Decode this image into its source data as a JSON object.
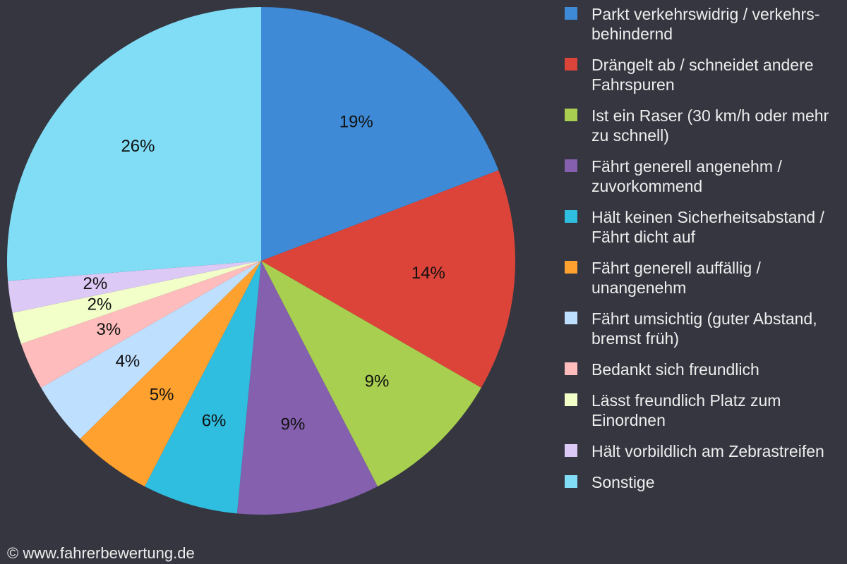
{
  "chart_data": {
    "type": "pie",
    "categories": [
      "Parkt verkehrswidrig / verkehrs-behindernd",
      "Drängelt ab / schneidet andere Fahrspuren",
      "Ist ein Raser (30 km/h oder mehr zu schnell)",
      "Fährt generell angenehm / zuvorkommend",
      "Hält keinen Sicherheitsabstand / Fährt dicht auf",
      "Fährt generell auffällig / unangenehm",
      "Fährt umsichtig (guter Abstand, bremst früh)",
      "Bedankt sich freundlich",
      "Lässt freundlich Platz zum Einordnen",
      "Hält vorbildlich am Zebrastreifen",
      "Sonstige"
    ],
    "values": [
      19,
      14,
      9,
      9,
      6,
      5,
      4,
      3,
      2,
      2,
      26
    ],
    "value_labels": [
      "19%",
      "14%",
      "9%",
      "9%",
      "6%",
      "5%",
      "4%",
      "3%",
      "2%",
      "2%",
      "26%"
    ],
    "colors": [
      "#3e8ad6",
      "#dc4439",
      "#a8cf4f",
      "#8560ae",
      "#2fbde0",
      "#ffa12f",
      "#bfdfff",
      "#ffbcbc",
      "#f2ffc9",
      "#dcc9f5",
      "#80ddf5"
    ],
    "legend": "right"
  },
  "footer": "© www.fahrerbewertung.de"
}
